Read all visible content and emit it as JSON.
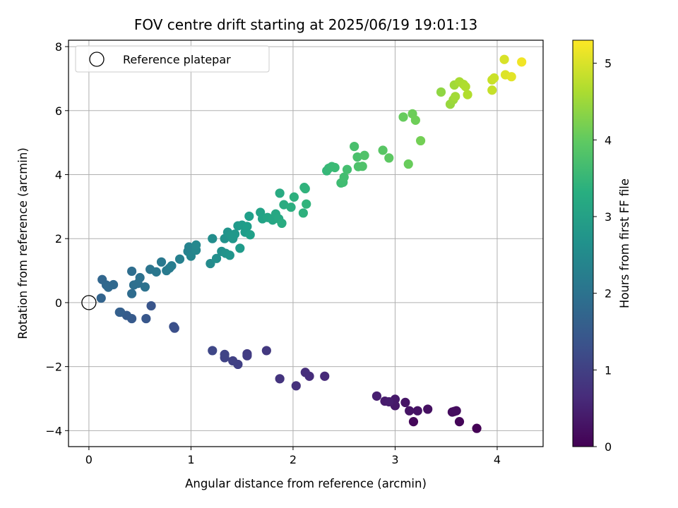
{
  "chart_data": {
    "type": "scatter",
    "title": "FOV centre drift starting at 2025/06/19 19:01:13",
    "xlabel": "Angular distance from reference (arcmin)",
    "ylabel": "Rotation from reference (arcmin)",
    "xlim": [
      -0.2,
      4.45
    ],
    "ylim": [
      -4.5,
      8.2
    ],
    "xticks": [
      0,
      1,
      2,
      3,
      4
    ],
    "xtick_labels": [
      "0",
      "1",
      "2",
      "3",
      "4"
    ],
    "yticks": [
      -4,
      -2,
      0,
      2,
      4,
      6,
      8
    ],
    "ytick_labels": [
      "−4",
      "−2",
      "0",
      "2",
      "4",
      "6",
      "8"
    ],
    "grid": true,
    "legend": {
      "placement": "upper-left",
      "entries": [
        "Reference platepar"
      ]
    },
    "reference_marker": {
      "label": "Reference platepar",
      "x": 0,
      "y": 0,
      "style": "open circle"
    },
    "colorbar": {
      "label": "Hours from first FF file",
      "range": [
        0,
        5.3
      ],
      "ticks": [
        0,
        1,
        2,
        3,
        4,
        5
      ],
      "tick_labels": [
        "0",
        "1",
        "2",
        "3",
        "4",
        "5"
      ],
      "colormap": "viridis"
    },
    "series": [
      {
        "name": "Reference platepar",
        "points": [
          {
            "x": 3.8,
            "y": -3.93,
            "c": 0.02
          },
          {
            "x": 3.63,
            "y": -3.72,
            "c": 0.06
          },
          {
            "x": 3.18,
            "y": -3.72,
            "c": 0.1
          },
          {
            "x": 3.58,
            "y": -3.4,
            "c": 0.14
          },
          {
            "x": 3.56,
            "y": -3.42,
            "c": 0.16
          },
          {
            "x": 3.6,
            "y": -3.38,
            "c": 0.18
          },
          {
            "x": 3.32,
            "y": -3.33,
            "c": 0.22
          },
          {
            "x": 3.22,
            "y": -3.38,
            "c": 0.26
          },
          {
            "x": 3.14,
            "y": -3.38,
            "c": 0.28
          },
          {
            "x": 3.1,
            "y": -3.12,
            "c": 0.3
          },
          {
            "x": 3.0,
            "y": -3.22,
            "c": 0.34
          },
          {
            "x": 3.0,
            "y": -3.02,
            "c": 0.36
          },
          {
            "x": 2.9,
            "y": -3.08,
            "c": 0.4
          },
          {
            "x": 2.94,
            "y": -3.1,
            "c": 0.42
          },
          {
            "x": 2.82,
            "y": -2.92,
            "c": 0.46
          },
          {
            "x": 2.31,
            "y": -2.3,
            "c": 0.62
          },
          {
            "x": 2.16,
            "y": -2.3,
            "c": 0.68
          },
          {
            "x": 2.12,
            "y": -2.18,
            "c": 0.7
          },
          {
            "x": 2.03,
            "y": -2.6,
            "c": 0.74
          },
          {
            "x": 1.87,
            "y": -2.38,
            "c": 0.8
          },
          {
            "x": 1.74,
            "y": -1.5,
            "c": 0.88
          },
          {
            "x": 1.55,
            "y": -1.6,
            "c": 0.94
          },
          {
            "x": 1.55,
            "y": -1.66,
            "c": 0.96
          },
          {
            "x": 1.46,
            "y": -1.93,
            "c": 1.0
          },
          {
            "x": 1.41,
            "y": -1.82,
            "c": 1.02
          },
          {
            "x": 1.33,
            "y": -1.72,
            "c": 1.06
          },
          {
            "x": 1.33,
            "y": -1.62,
            "c": 1.08
          },
          {
            "x": 1.21,
            "y": -1.5,
            "c": 1.12
          },
          {
            "x": 0.84,
            "y": -0.8,
            "c": 1.28
          },
          {
            "x": 0.83,
            "y": -0.75,
            "c": 1.3
          },
          {
            "x": 0.61,
            "y": -0.1,
            "c": 1.4
          },
          {
            "x": 0.56,
            "y": -0.5,
            "c": 1.44
          },
          {
            "x": 0.42,
            "y": -0.5,
            "c": 1.5
          },
          {
            "x": 0.37,
            "y": -0.4,
            "c": 1.54
          },
          {
            "x": 0.31,
            "y": -0.3,
            "c": 1.58
          },
          {
            "x": 0.3,
            "y": -0.3,
            "c": 1.6
          },
          {
            "x": 0.12,
            "y": 0.14,
            "c": 1.68
          },
          {
            "x": 0.13,
            "y": 0.72,
            "c": 1.74
          },
          {
            "x": 0.17,
            "y": 0.55,
            "c": 1.76
          },
          {
            "x": 0.19,
            "y": 0.48,
            "c": 1.78
          },
          {
            "x": 0.24,
            "y": 0.56,
            "c": 1.8
          },
          {
            "x": 0.42,
            "y": 0.28,
            "c": 1.86
          },
          {
            "x": 0.42,
            "y": 0.98,
            "c": 1.9
          },
          {
            "x": 0.44,
            "y": 0.55,
            "c": 1.92
          },
          {
            "x": 0.48,
            "y": 0.6,
            "c": 1.94
          },
          {
            "x": 0.5,
            "y": 0.78,
            "c": 1.98
          },
          {
            "x": 0.55,
            "y": 0.49,
            "c": 2.0
          },
          {
            "x": 0.6,
            "y": 1.04,
            "c": 2.06
          },
          {
            "x": 0.66,
            "y": 0.96,
            "c": 2.1
          },
          {
            "x": 0.71,
            "y": 1.27,
            "c": 2.14
          },
          {
            "x": 0.76,
            "y": 1.0,
            "c": 2.18
          },
          {
            "x": 0.79,
            "y": 1.08,
            "c": 2.2
          },
          {
            "x": 0.81,
            "y": 1.15,
            "c": 2.24
          },
          {
            "x": 0.89,
            "y": 1.36,
            "c": 2.3
          },
          {
            "x": 0.97,
            "y": 1.6,
            "c": 2.36
          },
          {
            "x": 0.98,
            "y": 1.74,
            "c": 2.38
          },
          {
            "x": 1.0,
            "y": 1.45,
            "c": 2.42
          },
          {
            "x": 1.05,
            "y": 1.64,
            "c": 2.46
          },
          {
            "x": 1.05,
            "y": 1.8,
            "c": 2.48
          },
          {
            "x": 1.19,
            "y": 1.22,
            "c": 2.54
          },
          {
            "x": 1.21,
            "y": 2.0,
            "c": 2.58
          },
          {
            "x": 1.25,
            "y": 1.38,
            "c": 2.62
          },
          {
            "x": 1.3,
            "y": 1.6,
            "c": 2.66
          },
          {
            "x": 1.33,
            "y": 2.0,
            "c": 2.7
          },
          {
            "x": 1.34,
            "y": 1.54,
            "c": 2.72
          },
          {
            "x": 1.36,
            "y": 2.2,
            "c": 2.74
          },
          {
            "x": 1.38,
            "y": 1.48,
            "c": 2.76
          },
          {
            "x": 1.39,
            "y": 2.1,
            "c": 2.78
          },
          {
            "x": 1.41,
            "y": 2.0,
            "c": 2.8
          },
          {
            "x": 1.43,
            "y": 2.14,
            "c": 2.82
          },
          {
            "x": 1.46,
            "y": 2.4,
            "c": 2.86
          },
          {
            "x": 1.48,
            "y": 1.7,
            "c": 2.88
          },
          {
            "x": 1.5,
            "y": 2.42,
            "c": 2.9
          },
          {
            "x": 1.53,
            "y": 2.2,
            "c": 2.92
          },
          {
            "x": 1.55,
            "y": 2.38,
            "c": 2.94
          },
          {
            "x": 1.57,
            "y": 2.7,
            "c": 2.96
          },
          {
            "x": 1.58,
            "y": 2.12,
            "c": 2.98
          },
          {
            "x": 1.68,
            "y": 2.82,
            "c": 3.04
          },
          {
            "x": 1.7,
            "y": 2.62,
            "c": 3.06
          },
          {
            "x": 1.75,
            "y": 2.66,
            "c": 3.1
          },
          {
            "x": 1.8,
            "y": 2.58,
            "c": 3.14
          },
          {
            "x": 1.83,
            "y": 2.77,
            "c": 3.16
          },
          {
            "x": 1.86,
            "y": 2.62,
            "c": 3.18
          },
          {
            "x": 1.87,
            "y": 3.42,
            "c": 3.22
          },
          {
            "x": 1.89,
            "y": 2.48,
            "c": 3.24
          },
          {
            "x": 1.91,
            "y": 3.06,
            "c": 3.26
          },
          {
            "x": 1.98,
            "y": 2.98,
            "c": 3.3
          },
          {
            "x": 2.01,
            "y": 3.3,
            "c": 3.34
          },
          {
            "x": 2.1,
            "y": 2.8,
            "c": 3.38
          },
          {
            "x": 2.11,
            "y": 3.6,
            "c": 3.4
          },
          {
            "x": 2.12,
            "y": 3.56,
            "c": 3.42
          },
          {
            "x": 2.13,
            "y": 3.08,
            "c": 3.44
          },
          {
            "x": 2.33,
            "y": 4.12,
            "c": 3.54
          },
          {
            "x": 2.35,
            "y": 4.2,
            "c": 3.56
          },
          {
            "x": 2.38,
            "y": 4.25,
            "c": 3.58
          },
          {
            "x": 2.41,
            "y": 4.22,
            "c": 3.6
          },
          {
            "x": 2.47,
            "y": 3.74,
            "c": 3.64
          },
          {
            "x": 2.49,
            "y": 3.76,
            "c": 3.66
          },
          {
            "x": 2.5,
            "y": 3.92,
            "c": 3.68
          },
          {
            "x": 2.53,
            "y": 4.16,
            "c": 3.7
          },
          {
            "x": 2.6,
            "y": 4.88,
            "c": 3.74
          },
          {
            "x": 2.63,
            "y": 4.55,
            "c": 3.76
          },
          {
            "x": 2.64,
            "y": 4.25,
            "c": 3.78
          },
          {
            "x": 2.68,
            "y": 4.26,
            "c": 3.8
          },
          {
            "x": 2.7,
            "y": 4.6,
            "c": 3.82
          },
          {
            "x": 2.88,
            "y": 4.76,
            "c": 3.9
          },
          {
            "x": 2.94,
            "y": 4.52,
            "c": 3.94
          },
          {
            "x": 3.08,
            "y": 5.8,
            "c": 4.04
          },
          {
            "x": 3.13,
            "y": 4.33,
            "c": 4.06
          },
          {
            "x": 3.17,
            "y": 5.9,
            "c": 4.1
          },
          {
            "x": 3.2,
            "y": 5.7,
            "c": 4.12
          },
          {
            "x": 3.25,
            "y": 5.06,
            "c": 4.16
          },
          {
            "x": 3.45,
            "y": 6.58,
            "c": 4.4
          },
          {
            "x": 3.54,
            "y": 6.2,
            "c": 4.46
          },
          {
            "x": 3.57,
            "y": 6.34,
            "c": 4.5
          },
          {
            "x": 3.58,
            "y": 6.8,
            "c": 4.54
          },
          {
            "x": 3.59,
            "y": 6.44,
            "c": 4.56
          },
          {
            "x": 3.63,
            "y": 6.9,
            "c": 4.6
          },
          {
            "x": 3.67,
            "y": 6.82,
            "c": 4.64
          },
          {
            "x": 3.69,
            "y": 6.75,
            "c": 4.66
          },
          {
            "x": 3.71,
            "y": 6.5,
            "c": 4.68
          },
          {
            "x": 3.95,
            "y": 6.64,
            "c": 4.84
          },
          {
            "x": 3.95,
            "y": 6.96,
            "c": 4.86
          },
          {
            "x": 3.97,
            "y": 7.02,
            "c": 4.88
          },
          {
            "x": 4.07,
            "y": 7.6,
            "c": 5.0
          },
          {
            "x": 4.08,
            "y": 7.12,
            "c": 5.04
          },
          {
            "x": 4.14,
            "y": 7.06,
            "c": 5.08
          },
          {
            "x": 4.24,
            "y": 7.52,
            "c": 5.2
          }
        ]
      }
    ]
  }
}
